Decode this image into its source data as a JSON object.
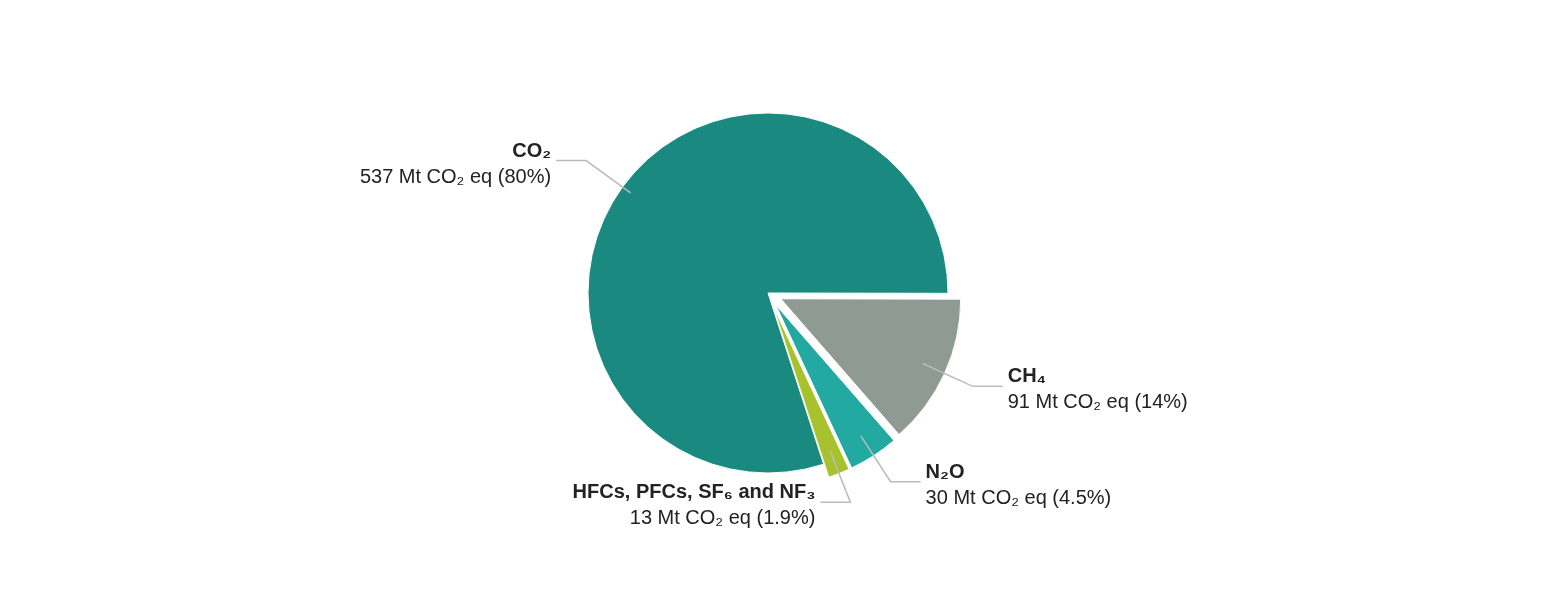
{
  "chart_data": {
    "type": "pie",
    "categories": [
      "CO₂",
      "CH₄",
      "N₂O",
      "HFCs, PFCs, SF₆ and NF₃"
    ],
    "values": [
      537,
      91,
      30,
      13
    ],
    "value_labels": [
      "537 Mt CO₂ eq (80%)",
      "91 Mt CO₂ eq (14%)",
      "30 Mt CO₂ eq (4.5%)",
      "13 Mt CO₂ eq (1.9%)"
    ],
    "colors": [
      "#1a8a80",
      "#8e9a92",
      "#22aaa2",
      "#a8c22e"
    ]
  }
}
